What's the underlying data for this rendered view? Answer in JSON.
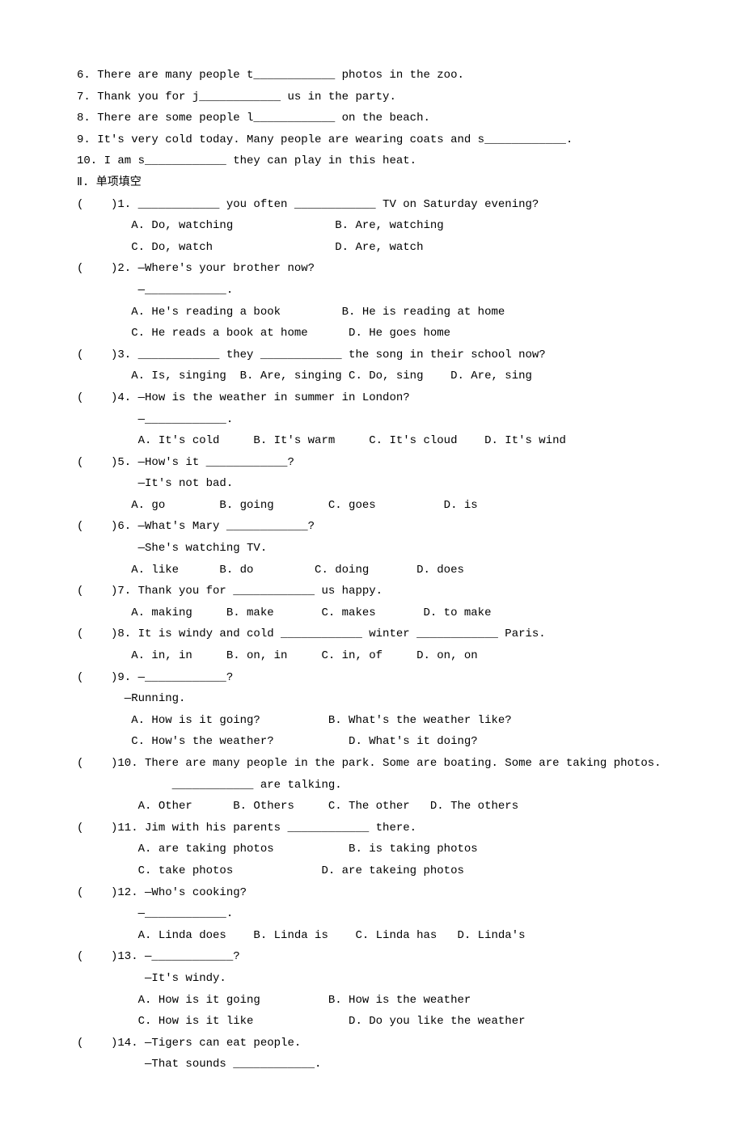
{
  "fill": [
    "6. There are many people t____________ photos in the zoo.",
    "7. Thank you for j____________ us in the party.",
    "8. There are some people l____________ on the beach.",
    "9. It's very cold today. Many people are wearing coats and s____________.",
    "10. I am s____________ they can play in this heat."
  ],
  "section2_title": "Ⅱ. 单项填空",
  "mc": [
    {
      "q": "(    )1. ____________ you often ____________ TV on Saturday evening?",
      "opts": [
        "        A. Do, watching               B. Are, watching",
        "        C. Do, watch                  D. Are, watch"
      ]
    },
    {
      "q": "(    )2. —Where's your brother now?",
      "q2": "         —____________.",
      "opts": [
        "        A. He's reading a book         B. He is reading at home",
        "        C. He reads a book at home      D. He goes home"
      ]
    },
    {
      "q": "(    )3. ____________ they ____________ the song in their school now?",
      "opts": [
        "        A. Is, singing  B. Are, singing C. Do, sing    D. Are, sing"
      ]
    },
    {
      "q": "(    )4. —How is the weather in summer in London?",
      "q2": "         —____________.",
      "opts": [
        "         A. It's cold     B. It's warm     C. It's cloud    D. It's wind"
      ]
    },
    {
      "q": "(    )5. —How's it ____________?",
      "q2": "         —It's not bad.",
      "opts": [
        "        A. go        B. going        C. goes          D. is"
      ]
    },
    {
      "q": "(    )6. —What's Mary ____________?",
      "q2": "         —She's watching TV.",
      "opts": [
        "        A. like      B. do         C. doing       D. does"
      ]
    },
    {
      "q": "(    )7. Thank you for ____________ us happy.",
      "opts": [
        "        A. making     B. make       C. makes       D. to make"
      ]
    },
    {
      "q": "(    )8. It is windy and cold ____________ winter ____________ Paris.",
      "opts": [
        "        A. in, in     B. on, in     C. in, of     D. on, on"
      ]
    },
    {
      "q": "(    )9. —____________?",
      "q2": "       —Running.",
      "opts": [
        "        A. How is it going?          B. What's the weather like?",
        "        C. How's the weather?           D. What's it doing?"
      ]
    },
    {
      "q": "(    )10. There are many people in the park. Some are boating. Some are taking photos.",
      "q2": "              ____________ are talking.",
      "opts": [
        "         A. Other      B. Others     C. The other   D. The others"
      ]
    },
    {
      "q": "(    )11. Jim with his parents ____________ there.",
      "opts": [
        "         A. are taking photos           B. is taking photos",
        "         C. take photos             D. are takeing photos"
      ]
    },
    {
      "q": "(    )12. —Who's cooking?",
      "q2": "         —____________.",
      "opts": [
        "         A. Linda does    B. Linda is    C. Linda has   D. Linda's"
      ]
    },
    {
      "q": "(    )13. —____________?",
      "q2": "          —It's windy.",
      "opts": [
        "         A. How is it going          B. How is the weather",
        "         C. How is it like              D. Do you like the weather"
      ]
    },
    {
      "q": "(    )14. —Tigers can eat people.",
      "q2": "          —That sounds ____________.",
      "opts": []
    }
  ]
}
